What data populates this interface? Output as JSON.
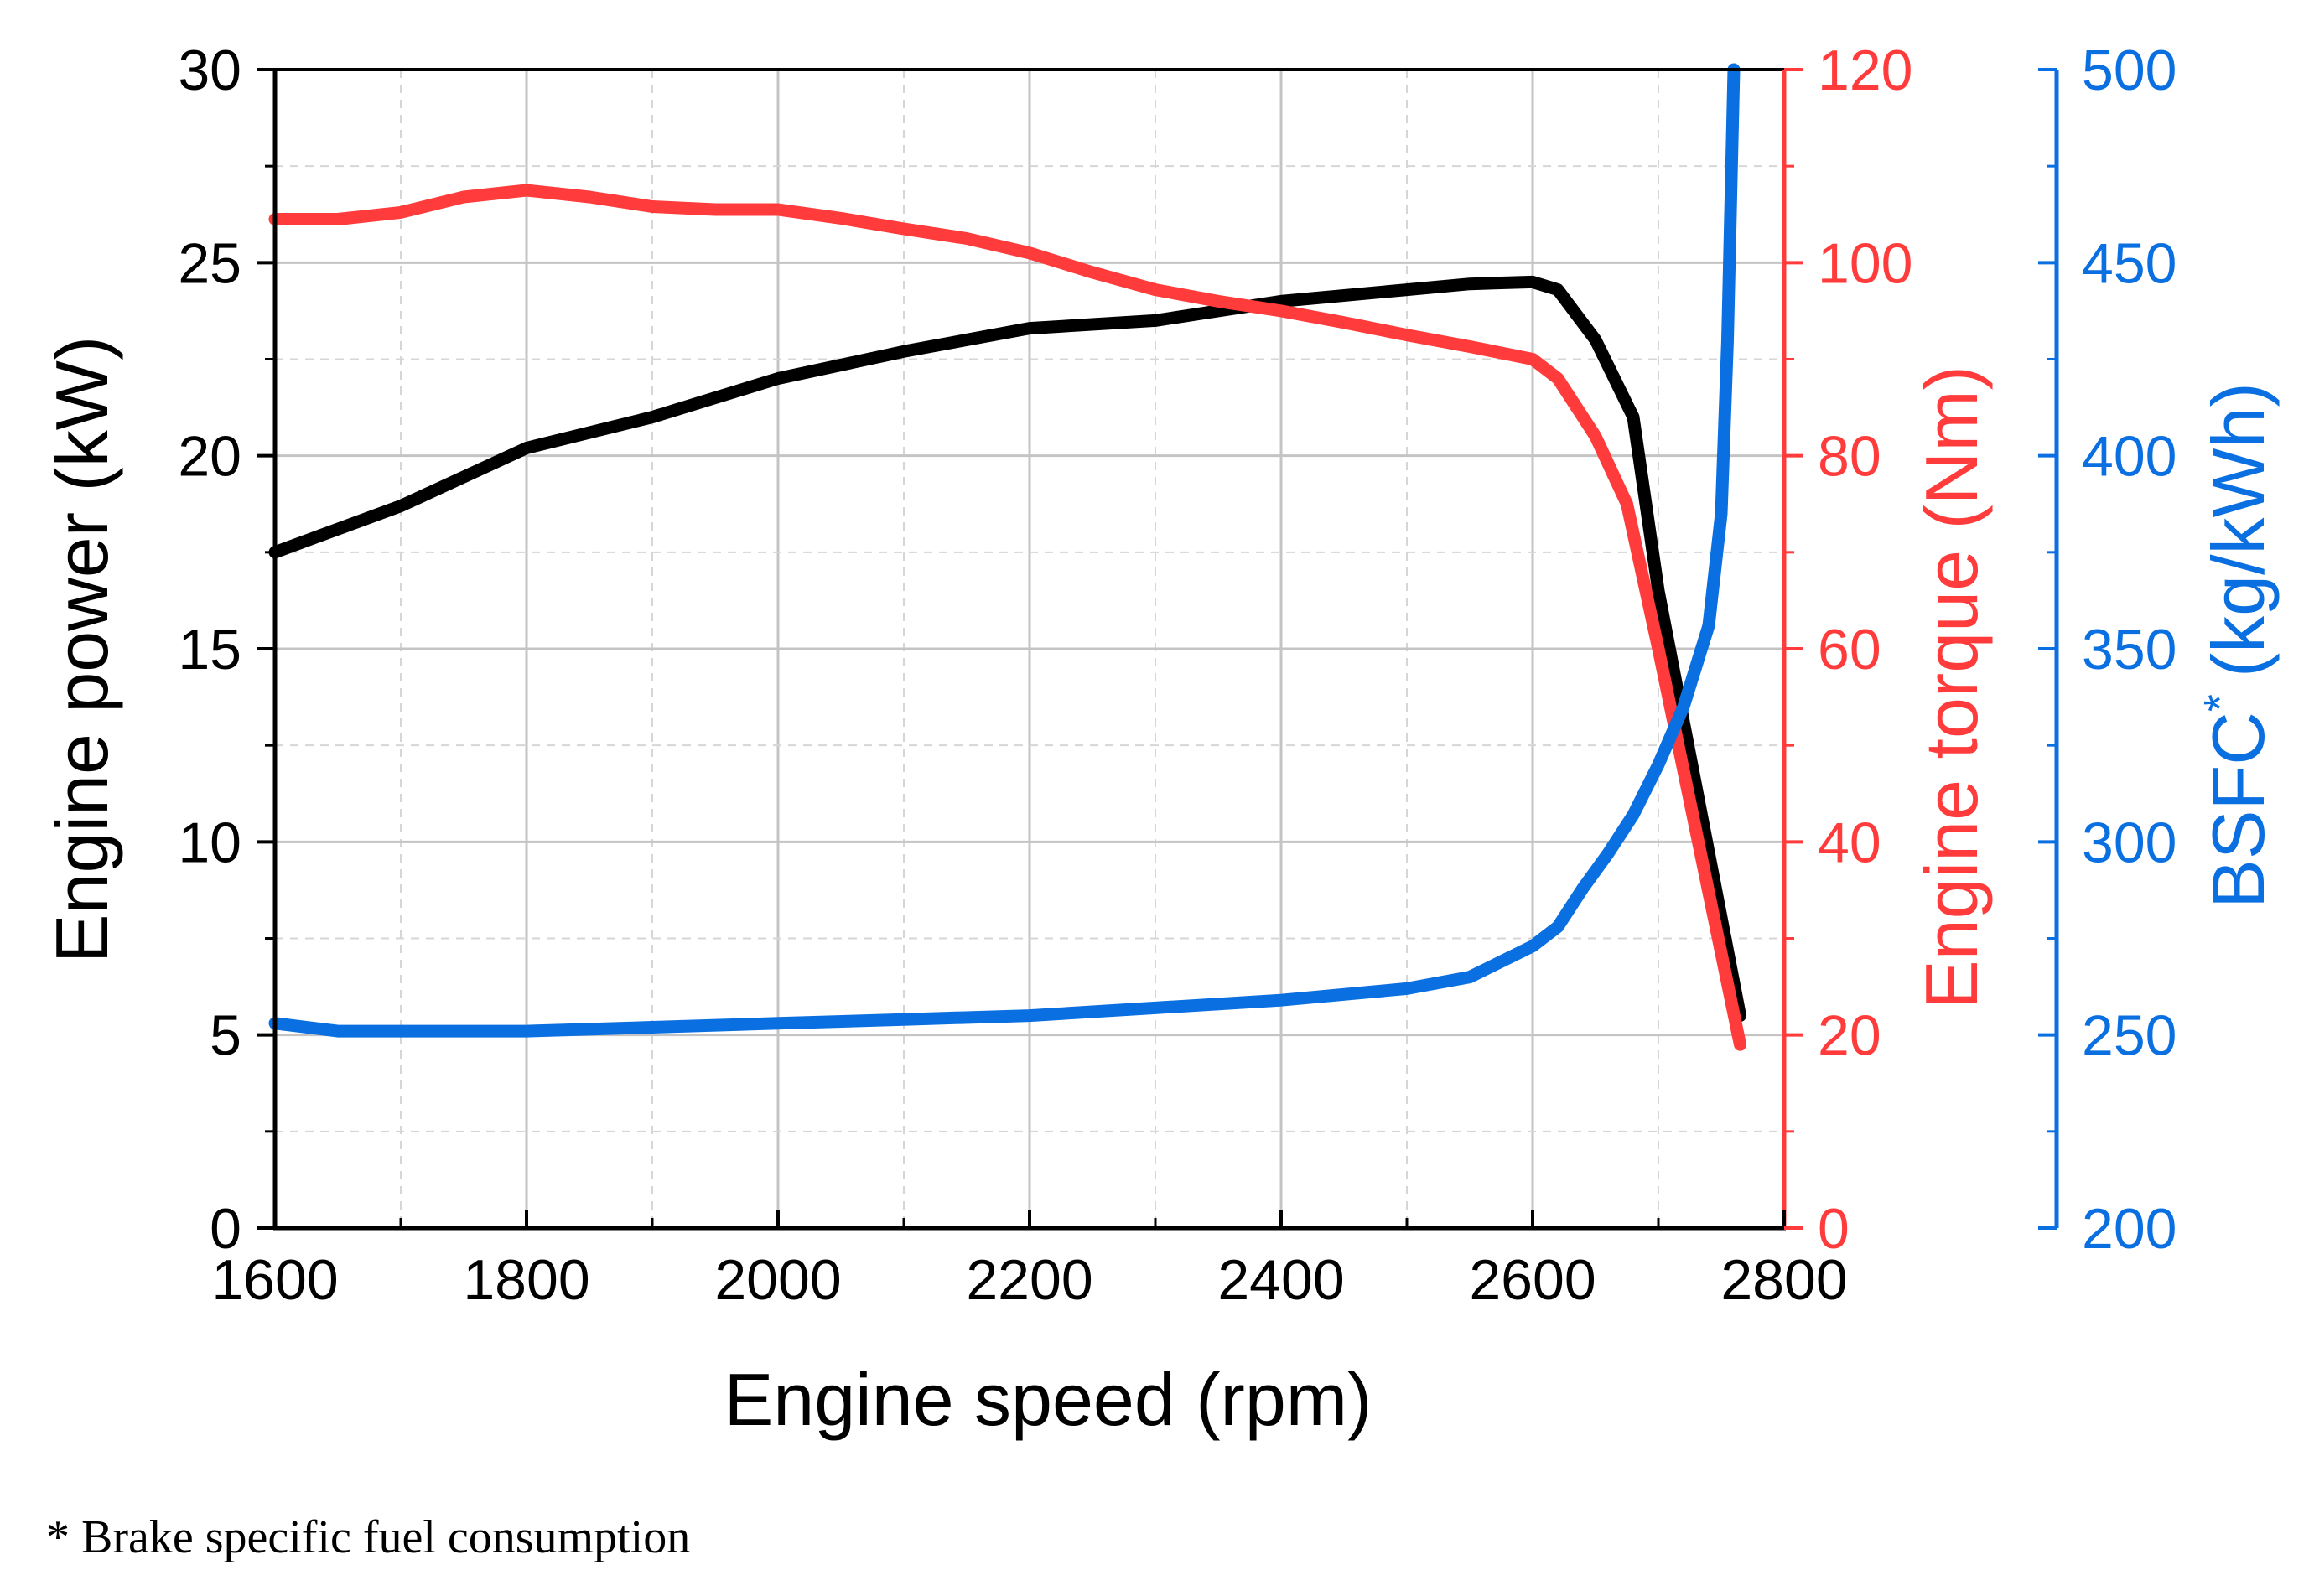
{
  "chart_data": {
    "type": "line",
    "x": [
      1600,
      1700,
      1800,
      1900,
      2000,
      2100,
      2200,
      2300,
      2400,
      2500,
      2550,
      2600,
      2620,
      2650,
      2680,
      2700,
      2730,
      2750,
      2765
    ],
    "xlabel": "Engine speed (rpm)",
    "xlim": [
      1600,
      2800
    ],
    "xticks": [
      1600,
      1800,
      2000,
      2200,
      2400,
      2600,
      2800
    ],
    "grid": true,
    "axes": {
      "power": {
        "label": "Engine power (kW)",
        "lim": [
          0,
          30
        ],
        "ticks": [
          0,
          5,
          10,
          15,
          20,
          25,
          30
        ],
        "color": "#000000"
      },
      "torque": {
        "label": "Engine torque (Nm)",
        "lim": [
          0,
          120
        ],
        "ticks": [
          0,
          20,
          40,
          60,
          80,
          100,
          120
        ],
        "color": "#ff3b3b"
      },
      "bsfc": {
        "label": "BSFC",
        "label_sup": "*",
        "label_unit": "(kg/kWh)",
        "lim": [
          200,
          500
        ],
        "ticks": [
          200,
          250,
          300,
          350,
          400,
          450,
          500
        ],
        "color": "#0a6fe0"
      }
    },
    "series": [
      {
        "name": "Engine power",
        "axis": "power",
        "color": "#000000",
        "x": [
          1600,
          1700,
          1800,
          1900,
          2000,
          2100,
          2200,
          2300,
          2400,
          2500,
          2550,
          2600,
          2620,
          2650,
          2680,
          2700,
          2765
        ],
        "values": [
          17.5,
          18.7,
          20.2,
          21.0,
          22.0,
          22.7,
          23.3,
          23.5,
          24.0,
          24.3,
          24.45,
          24.5,
          24.3,
          23.0,
          21.0,
          16.5,
          5.5
        ]
      },
      {
        "name": "Engine torque",
        "axis": "torque",
        "color": "#ff3b3b",
        "x": [
          1600,
          1650,
          1700,
          1750,
          1800,
          1850,
          1900,
          1950,
          2000,
          2050,
          2100,
          2150,
          2200,
          2250,
          2300,
          2350,
          2400,
          2450,
          2500,
          2550,
          2600,
          2620,
          2650,
          2675,
          2700,
          2765
        ],
        "values": [
          104.5,
          104.5,
          105.2,
          106.8,
          107.5,
          106.8,
          105.8,
          105.5,
          105.5,
          104.6,
          103.5,
          102.5,
          101.0,
          99.0,
          97.2,
          96.0,
          95.0,
          93.8,
          92.5,
          91.3,
          90.0,
          88.0,
          82.0,
          75.0,
          60.0,
          19.0
        ]
      },
      {
        "name": "BSFC",
        "axis": "bsfc",
        "color": "#0a6fe0",
        "x": [
          1600,
          1650,
          1700,
          1800,
          1900,
          2000,
          2100,
          2200,
          2300,
          2400,
          2500,
          2550,
          2600,
          2620,
          2640,
          2660,
          2680,
          2700,
          2720,
          2740,
          2750,
          2755,
          2760
        ],
        "values": [
          253,
          251,
          251,
          251,
          252,
          253,
          254,
          255,
          257,
          259,
          262,
          265,
          273,
          278,
          288,
          297,
          307,
          320,
          335,
          356,
          385,
          430,
          500
        ]
      }
    ],
    "footnote": "* Brake specific fuel consumption"
  }
}
